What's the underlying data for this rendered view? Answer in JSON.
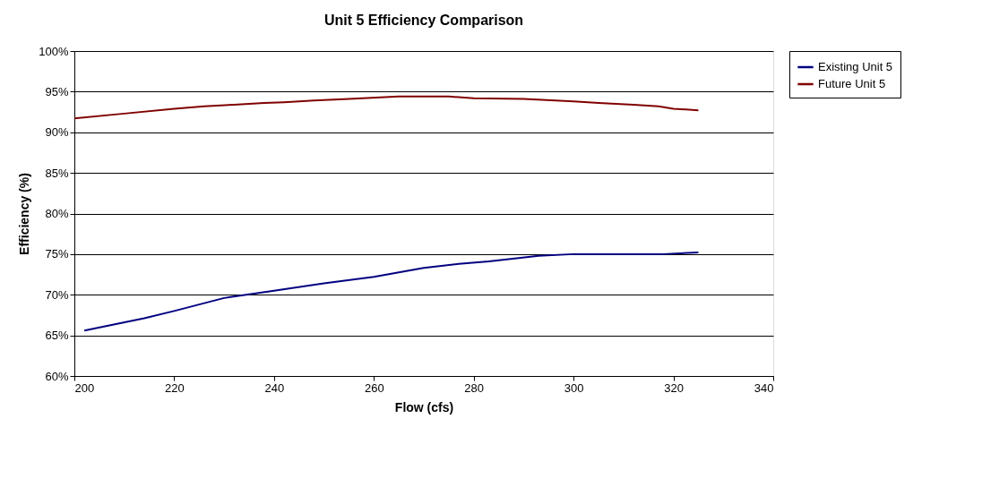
{
  "chart_data": {
    "type": "line",
    "title": "Unit 5 Efficiency Comparison",
    "xlabel": "Flow (cfs)",
    "ylabel": "Efficiency (%)",
    "xlim": [
      200,
      340
    ],
    "xticks": [
      200,
      220,
      240,
      260,
      280,
      300,
      320,
      340
    ],
    "ylim": [
      60,
      100
    ],
    "yticks": [
      {
        "value": 60,
        "label": "60%"
      },
      {
        "value": 65,
        "label": "65%"
      },
      {
        "value": 70,
        "label": "70%"
      },
      {
        "value": 75,
        "label": "75%"
      },
      {
        "value": 80,
        "label": "80%"
      },
      {
        "value": 85,
        "label": "85%"
      },
      {
        "value": 90,
        "label": "90%"
      },
      {
        "value": 95,
        "label": "95%"
      },
      {
        "value": 100,
        "label": "100%"
      }
    ],
    "grid": "y",
    "legend": "right",
    "marker": "none",
    "line_style": "solid",
    "series": [
      {
        "name": "Existing Unit 5",
        "color": "#000080",
        "x": [
          202,
          214,
          220,
          230,
          240,
          250,
          260,
          270,
          277,
          283,
          293,
          300,
          318,
          325
        ],
        "values": [
          65.6,
          67.1,
          68.0,
          69.6,
          70.5,
          71.4,
          72.2,
          73.3,
          73.8,
          74.1,
          74.8,
          75.0,
          75.0,
          75.2
        ]
      },
      {
        "name": "Future Unit 5",
        "color": "#800000",
        "x": [
          200,
          210,
          220,
          226,
          232,
          238,
          242,
          248,
          255,
          265,
          275,
          280,
          290,
          300,
          305,
          312,
          317,
          320,
          325
        ],
        "values": [
          91.7,
          92.3,
          92.9,
          93.2,
          93.4,
          93.6,
          93.7,
          93.9,
          94.1,
          94.4,
          94.4,
          94.2,
          94.1,
          93.8,
          93.6,
          93.4,
          93.2,
          92.9,
          92.7
        ]
      }
    ]
  }
}
